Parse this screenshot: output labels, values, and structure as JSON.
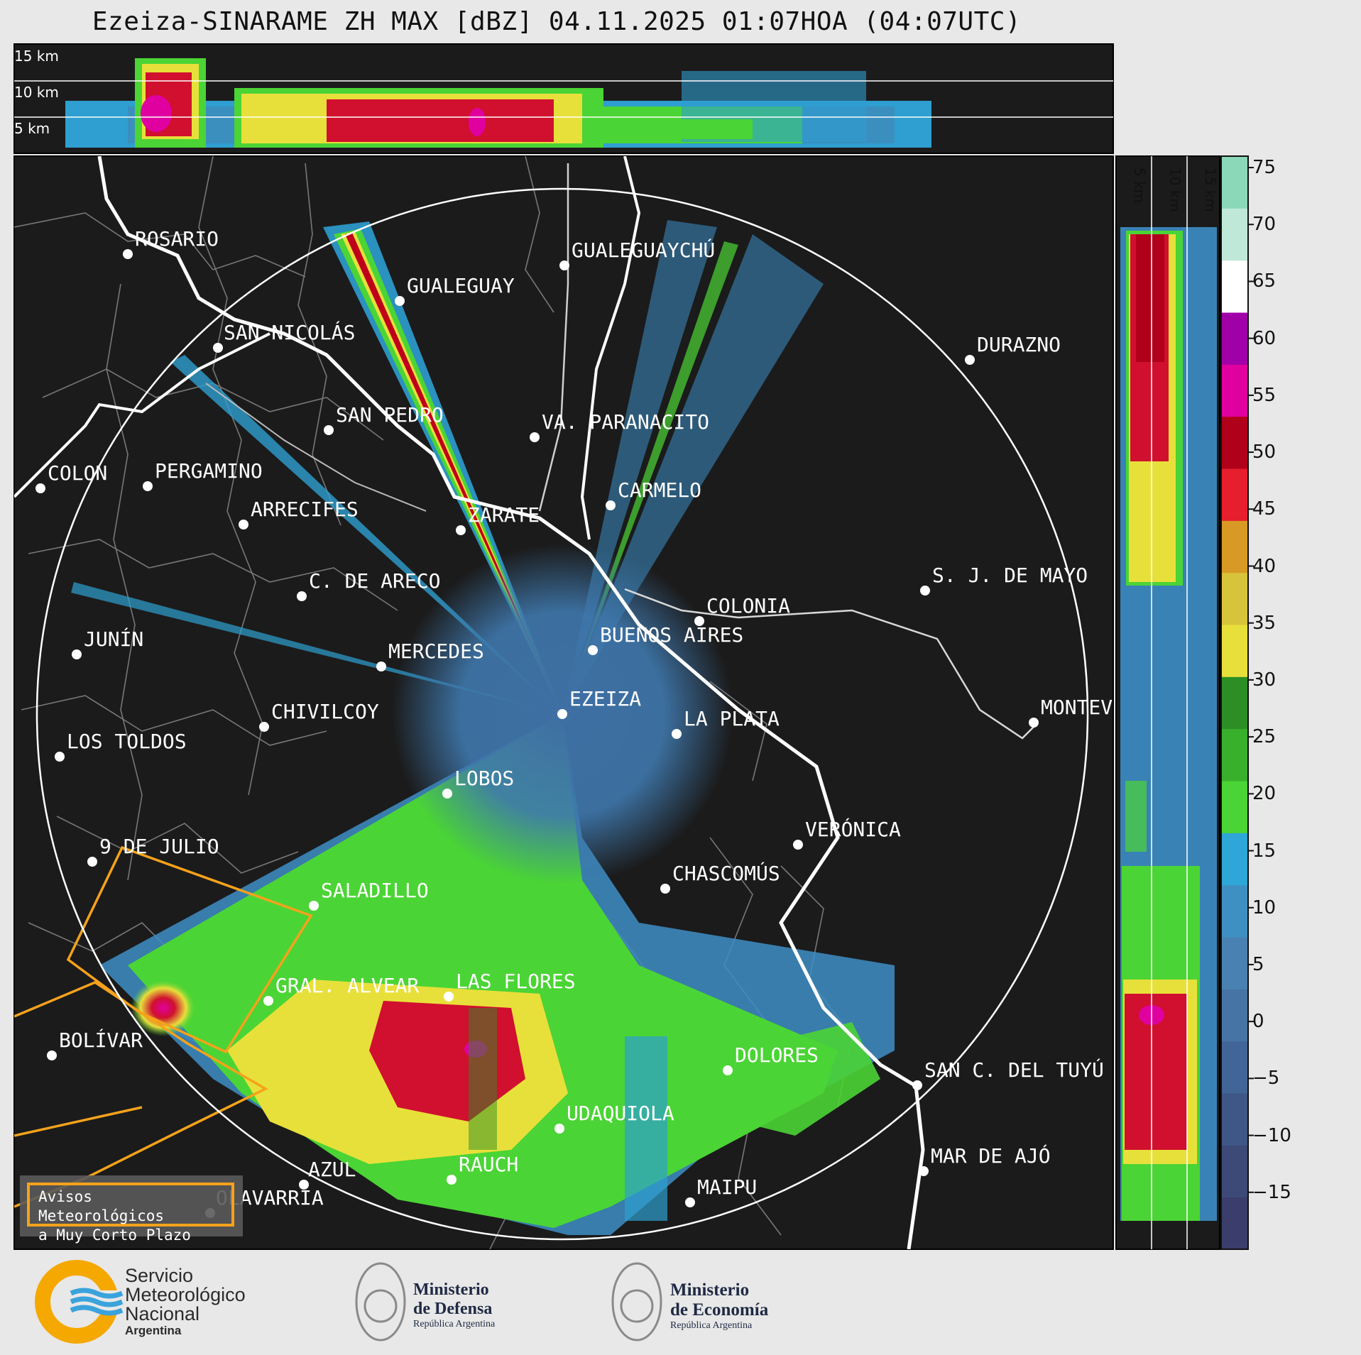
{
  "title": "Ezeiza-SINARAME ZH MAX [dBZ] 04.11.2025 01:07HOA (04:07UTC)",
  "height_labels_top": [
    "15 km",
    "10 km",
    "5 km"
  ],
  "height_labels_side": [
    "5 km",
    "10 km",
    "15 km"
  ],
  "colorbar": {
    "ticks": [
      "75",
      "70",
      "65",
      "60",
      "55",
      "50",
      "45",
      "40",
      "35",
      "30",
      "25",
      "20",
      "15",
      "10",
      "5",
      "0",
      "−5",
      "−10",
      "−15"
    ],
    "range": [
      -20,
      76
    ],
    "colors": [
      "#3b3d6b",
      "#3d4a78",
      "#3f5787",
      "#416596",
      "#4674a5",
      "#4982b2",
      "#3f90c2",
      "#2ea6d8",
      "#4bd435",
      "#39b02c",
      "#2c8e25",
      "#e8e03a",
      "#d8c43a",
      "#d89a24",
      "#e61e2e",
      "#b0001a",
      "#e000a0",
      "#a000a8",
      "#ffffff",
      "#bfe8d8",
      "#8ad8b8"
    ]
  },
  "cities": [
    {
      "name": "ROSARIO"
    },
    {
      "name": "GUALEGUAYCHÚ"
    },
    {
      "name": "GUALEGUAY"
    },
    {
      "name": "SAN NICOLÁS"
    },
    {
      "name": "DURAZNO"
    },
    {
      "name": "SAN PEDRO"
    },
    {
      "name": "VA. PARANACITO"
    },
    {
      "name": "COLON"
    },
    {
      "name": "PERGAMINO"
    },
    {
      "name": "CARMELO"
    },
    {
      "name": "ARRECIFES"
    },
    {
      "name": "ZÁRATE"
    },
    {
      "name": "S. J. DE MAYO"
    },
    {
      "name": "C. DE ARECO"
    },
    {
      "name": "COLONIA"
    },
    {
      "name": "JUNÍN"
    },
    {
      "name": "BUENOS AIRES"
    },
    {
      "name": "MERCEDES"
    },
    {
      "name": "EZEIZA"
    },
    {
      "name": "MONTEV"
    },
    {
      "name": "CHIVILCOY"
    },
    {
      "name": "LA PLATA"
    },
    {
      "name": "LOS TOLDOS"
    },
    {
      "name": "LOBOS"
    },
    {
      "name": "VERÓNICA"
    },
    {
      "name": "9 DE JULIO"
    },
    {
      "name": "CHASCOMÚS"
    },
    {
      "name": "SALADILLO"
    },
    {
      "name": "GRAL. ALVEAR"
    },
    {
      "name": "LAS FLORES"
    },
    {
      "name": "BOLÍVAR"
    },
    {
      "name": "DOLORES"
    },
    {
      "name": "SAN C. DEL TUYÚ"
    },
    {
      "name": "UDAQUIOLA"
    },
    {
      "name": "MAR DE AJÓ"
    },
    {
      "name": "RAUCH"
    },
    {
      "name": "AZUL"
    },
    {
      "name": "OLAVARRÍA"
    },
    {
      "name": "MAIPU"
    }
  ],
  "warning_label": "Avisos Meteorológicos\na Muy Corto Plazo",
  "logos": {
    "smn": [
      "Servicio",
      "Meteorológico",
      "Nacional",
      "Argentina"
    ],
    "defensa": [
      "Ministerio",
      "de Defensa",
      "República Argentina"
    ],
    "economia": [
      "Ministerio",
      "de Economía",
      "República Argentina"
    ]
  }
}
